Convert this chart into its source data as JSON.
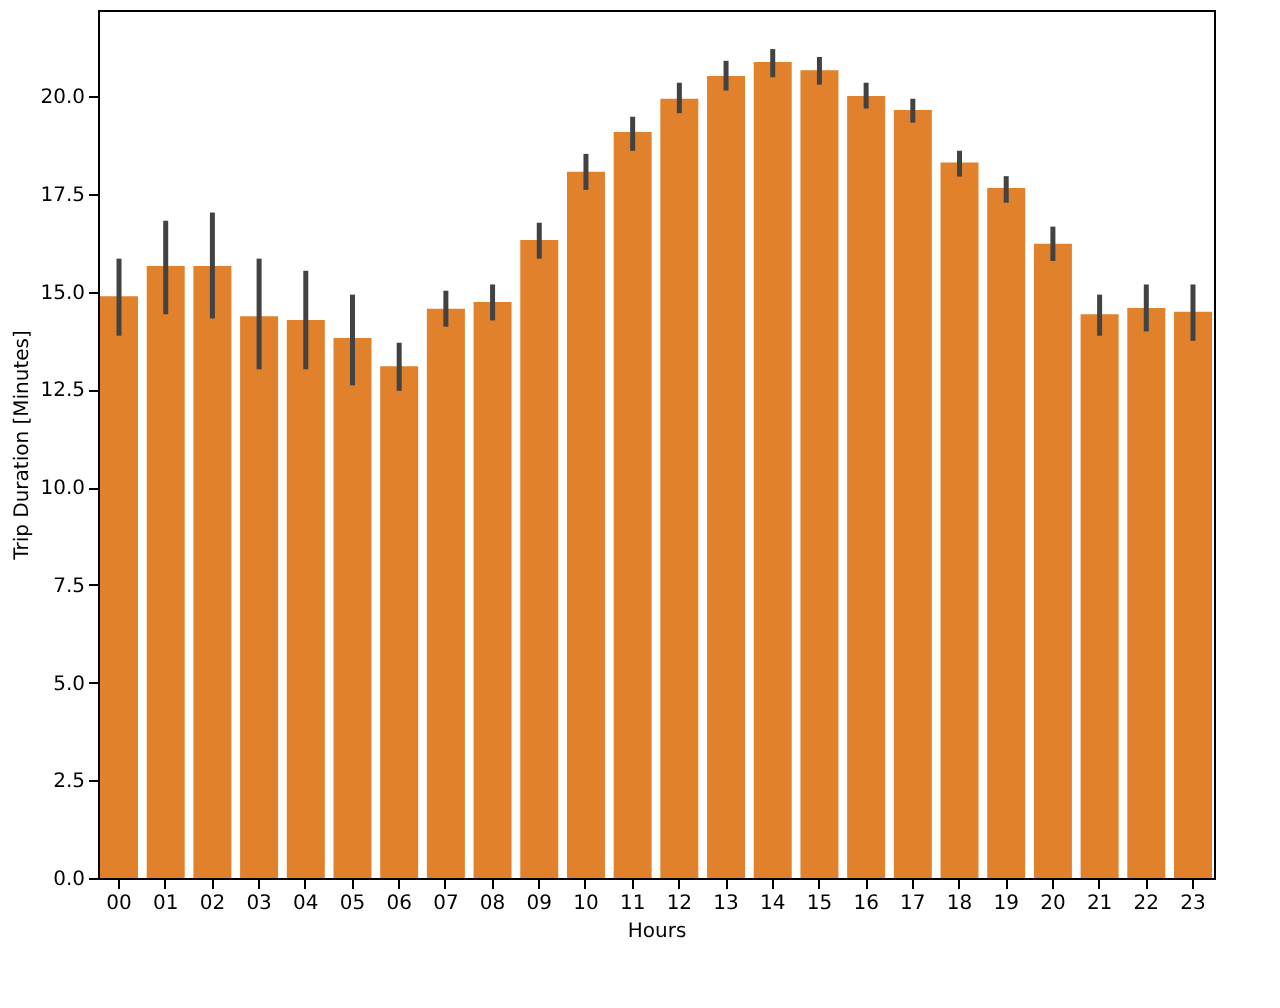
{
  "chart_data": {
    "type": "bar",
    "xlabel": "Hours",
    "ylabel": "Trip Duration [Minutes]",
    "categories": [
      "00",
      "01",
      "02",
      "03",
      "04",
      "05",
      "06",
      "07",
      "08",
      "09",
      "10",
      "11",
      "12",
      "13",
      "14",
      "15",
      "16",
      "17",
      "18",
      "19",
      "20",
      "21",
      "22",
      "23"
    ],
    "series": [
      {
        "color": "#e1812c",
        "values": [
          14.88,
          15.65,
          15.65,
          14.37,
          14.27,
          13.81,
          13.09,
          14.56,
          14.73,
          16.32,
          18.06,
          19.08,
          19.93,
          20.51,
          20.87,
          20.66,
          20.0,
          19.64,
          18.3,
          17.65,
          16.22,
          14.42,
          14.58,
          14.48
        ],
        "errors": [
          [
            13.87,
            15.84
          ],
          [
            14.42,
            16.81
          ],
          [
            14.31,
            17.02
          ],
          [
            13.01,
            15.84
          ],
          [
            13.01,
            15.53
          ],
          [
            12.6,
            14.92
          ],
          [
            12.46,
            13.69
          ],
          [
            14.1,
            15.02
          ],
          [
            14.26,
            15.18
          ],
          [
            15.84,
            16.76
          ],
          [
            17.6,
            18.52
          ],
          [
            18.6,
            19.47
          ],
          [
            19.56,
            20.34
          ],
          [
            20.14,
            20.9
          ],
          [
            20.48,
            21.2
          ],
          [
            20.29,
            21.0
          ],
          [
            19.68,
            20.34
          ],
          [
            19.32,
            19.93
          ],
          [
            17.94,
            18.6
          ],
          [
            17.27,
            17.95
          ],
          [
            15.78,
            16.66
          ],
          [
            13.87,
            14.92
          ],
          [
            13.98,
            15.18
          ],
          [
            13.74,
            15.18
          ]
        ]
      }
    ],
    "ylim": [
      0,
      22.2
    ],
    "yticks": [
      {
        "value": 0,
        "label": "0.0"
      },
      {
        "value": 2.5,
        "label": "2.5"
      },
      {
        "value": 5,
        "label": "5.0"
      },
      {
        "value": 7.5,
        "label": "7.5"
      },
      {
        "value": 10,
        "label": "10.0"
      },
      {
        "value": 12.5,
        "label": "12.5"
      },
      {
        "value": 15,
        "label": "15.0"
      },
      {
        "value": 17.5,
        "label": "17.5"
      },
      {
        "value": 20,
        "label": "20.0"
      }
    ],
    "grid": false
  }
}
